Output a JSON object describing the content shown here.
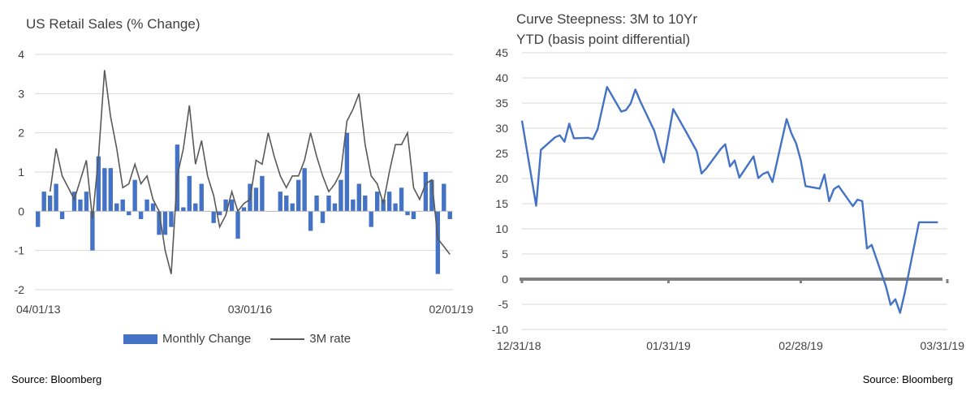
{
  "left_chart": {
    "title": "US Retail Sales (% Change)",
    "source": "Source: Bloomberg",
    "legend": {
      "bar_label": "Monthly Change",
      "line_label": "3M rate"
    },
    "colors": {
      "bar": "#4472C4",
      "line": "#595959",
      "grid": "#D9D9D9",
      "axis": "#BFBFBF"
    }
  },
  "right_chart": {
    "title_line1": "Curve Steepness: 3M to 10Yr",
    "title_line2": "YTD (basis point differential)",
    "source": "Source: Bloomberg",
    "colors": {
      "line": "#4472C4",
      "zero": "#808080",
      "grid": "#D9D9D9"
    }
  },
  "chart_data": [
    {
      "type": "bar",
      "title": "US Retail Sales (% Change)",
      "ylim": [
        -2,
        4
      ],
      "yticks": [
        "4",
        "3",
        "2",
        "1",
        "0",
        "-1",
        "-2"
      ],
      "ytick_values": [
        4,
        3,
        2,
        1,
        0,
        -1,
        -2
      ],
      "xtick_labels": [
        "04/01/13",
        "03/01/16",
        "02/01/19"
      ],
      "xtick_index": [
        0,
        35,
        70
      ],
      "grid": true,
      "legend_position": "bottom",
      "series": [
        {
          "name": "Monthly Change",
          "type": "bar",
          "values": [
            -0.4,
            0.5,
            0.4,
            0.7,
            -0.2,
            0.0,
            0.5,
            0.3,
            0.5,
            -1.0,
            1.4,
            1.1,
            1.1,
            0.2,
            0.3,
            -0.1,
            0.8,
            -0.2,
            0.3,
            0.2,
            -0.6,
            -0.6,
            -0.4,
            1.7,
            0.1,
            0.9,
            0.2,
            0.7,
            0.0,
            -0.3,
            -0.1,
            0.3,
            0.3,
            -0.7,
            0.1,
            0.7,
            0.6,
            0.9,
            0.0,
            0.0,
            0.5,
            0.4,
            0.2,
            0.8,
            1.1,
            -0.5,
            0.4,
            -0.3,
            0.4,
            0.2,
            0.8,
            2.0,
            0.3,
            0.7,
            0.4,
            -0.4,
            0.5,
            0.3,
            0.5,
            0.2,
            0.6,
            -0.1,
            -0.2,
            0.0,
            1.0,
            0.8,
            -1.6,
            0.7,
            -0.2
          ]
        },
        {
          "name": "3M rate",
          "type": "line",
          "values": [
            null,
            null,
            0.5,
            1.6,
            0.9,
            0.6,
            0.3,
            0.8,
            1.3,
            -0.2,
            1.4,
            3.6,
            2.4,
            1.6,
            0.6,
            0.7,
            1.2,
            0.7,
            0.9,
            0.3,
            0.0,
            -1.0,
            -1.6,
            0.9,
            1.6,
            2.7,
            1.2,
            1.8,
            0.9,
            0.4,
            -0.4,
            -0.1,
            0.5,
            0.0,
            0.2,
            0.3,
            1.3,
            1.2,
            2.0,
            1.4,
            0.9,
            0.6,
            0.9,
            0.9,
            1.3,
            2.0,
            1.4,
            0.9,
            0.5,
            0.7,
            1.0,
            2.3,
            2.6,
            3.0,
            1.7,
            0.9,
            0.7,
            0.2,
            1.0,
            1.7,
            1.7,
            2.0,
            0.6,
            0.3,
            0.7,
            0.8,
            -0.7,
            -0.9,
            -1.1
          ]
        }
      ]
    },
    {
      "type": "line",
      "title": "Curve Steepness: 3M to 10Yr YTD (basis point differential)",
      "ylim": [
        -10,
        45
      ],
      "yticks": [
        "45",
        "40",
        "35",
        "30",
        "25",
        "20",
        "15",
        "10",
        "5",
        "0",
        "-5",
        "-10"
      ],
      "ytick_values": [
        45,
        40,
        35,
        30,
        25,
        20,
        15,
        10,
        5,
        0,
        -5,
        -10
      ],
      "xlim": [
        "12/31/18",
        "03/31/19"
      ],
      "xtick_labels": [
        "12/31/18",
        "01/31/19",
        "02/28/19",
        "03/31/19"
      ],
      "xtick_day": [
        0,
        31,
        59,
        90
      ],
      "grid": true,
      "series": [
        {
          "name": "",
          "x": [
            "12/31/18",
            "01/03/19",
            "01/04/19",
            "01/07/19",
            "01/08/19",
            "01/09/19",
            "01/10/19",
            "01/11/19",
            "01/14/19",
            "01/15/19",
            "01/16/19",
            "01/17/19",
            "01/18/19",
            "01/21/19",
            "01/22/19",
            "01/23/19",
            "01/24/19",
            "01/25/19",
            "01/28/19",
            "01/29/19",
            "01/30/19",
            "01/31/19",
            "02/01/19",
            "02/04/19",
            "02/05/19",
            "02/06/19",
            "02/07/19",
            "02/08/19",
            "02/11/19",
            "02/12/19",
            "02/13/19",
            "02/14/19",
            "02/15/19",
            "02/18/19",
            "02/19/19",
            "02/20/19",
            "02/21/19",
            "02/22/19",
            "02/25/19",
            "02/26/19",
            "02/27/19",
            "02/28/19",
            "03/01/19",
            "03/04/19",
            "03/05/19",
            "03/06/19",
            "03/07/19",
            "03/08/19",
            "03/11/19",
            "03/12/19",
            "03/13/19",
            "03/14/19",
            "03/15/19",
            "03/18/19",
            "03/19/19",
            "03/20/19",
            "03/21/19",
            "03/22/19",
            "03/25/19",
            "03/26/19",
            "03/27/19",
            "03/28/19",
            "03/29/19"
          ],
          "y": [
            31.5,
            14.6,
            25.7,
            28.2,
            28.6,
            27.3,
            30.9,
            28.0,
            28.1,
            27.8,
            29.8,
            34.0,
            38.2,
            33.3,
            33.6,
            34.9,
            37.7,
            35.4,
            29.5,
            26.2,
            23.2,
            28.5,
            33.8,
            28.8,
            27.1,
            25.4,
            21.0,
            22.0,
            25.8,
            26.8,
            22.4,
            23.6,
            20.2,
            24.4,
            20.1,
            20.9,
            21.3,
            19.3,
            31.8,
            29.0,
            27.0,
            23.6,
            18.5,
            18.0,
            20.8,
            15.5,
            17.9,
            18.5,
            14.5,
            15.8,
            15.5,
            6.1,
            6.8,
            -1.4,
            -5.1,
            -4.0,
            -6.7,
            -2.7,
            11.3,
            11.3,
            11.3,
            11.3,
            11.3
          ]
        }
      ]
    }
  ]
}
